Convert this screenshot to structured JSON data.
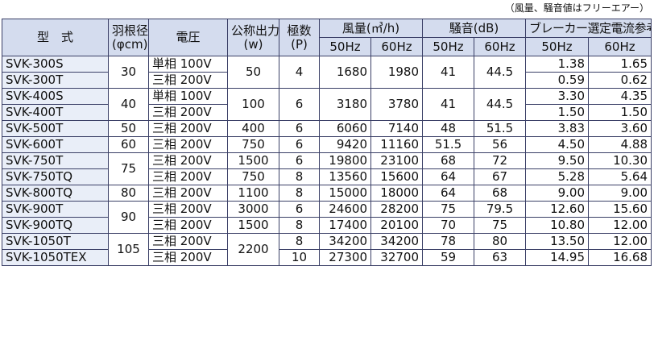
{
  "note": "（風量、騒音値はフリーエアー）",
  "headers": {
    "model": "型　式",
    "blade_dia": "羽根径",
    "blade_dia_unit": "(φcm)",
    "voltage": "電圧",
    "output": "公称出力",
    "output_unit": "(w)",
    "poles": "極数",
    "poles_unit": "(P)",
    "airflow": "風量(㎥/h)",
    "noise": "騒音(dB)",
    "breaker": "ブレーカー選定電流参考値(A)",
    "hz50": "50Hz",
    "hz60": "60Hz"
  },
  "rows": [
    {
      "model": "SVK-300S",
      "dia": "30",
      "volt": "単相 100V",
      "output": "50",
      "poles": "4",
      "af50": "1680",
      "af60": "1980",
      "n50": "41",
      "n60": "44.5",
      "b50": "1.38",
      "b60": "1.65"
    },
    {
      "model": "SVK-300T",
      "volt": "三相 200V",
      "b50": "0.59",
      "b60": "0.62"
    },
    {
      "model": "SVK-400S",
      "dia": "40",
      "volt": "単相 100V",
      "output": "100",
      "poles": "6",
      "af50": "3180",
      "af60": "3780",
      "n50": "41",
      "n60": "44.5",
      "b50": "3.30",
      "b60": "4.35"
    },
    {
      "model": "SVK-400T",
      "volt": "三相 200V",
      "b50": "1.50",
      "b60": "1.50"
    },
    {
      "model": "SVK-500T",
      "dia": "50",
      "volt": "三相 200V",
      "output": "400",
      "poles": "6",
      "af50": "6060",
      "af60": "7140",
      "n50": "48",
      "n60": "51.5",
      "b50": "3.83",
      "b60": "3.60"
    },
    {
      "model": "SVK-600T",
      "dia": "60",
      "volt": "三相 200V",
      "output": "750",
      "poles": "6",
      "af50": "9420",
      "af60": "11160",
      "n50": "51.5",
      "n60": "56",
      "b50": "4.50",
      "b60": "4.88"
    },
    {
      "model": "SVK-750T",
      "dia": "75",
      "volt": "三相 200V",
      "output": "1500",
      "poles": "6",
      "af50": "19800",
      "af60": "23100",
      "n50": "68",
      "n60": "72",
      "b50": "9.50",
      "b60": "10.30"
    },
    {
      "model": "SVK-750TQ",
      "volt": "三相 200V",
      "output": "750",
      "poles": "8",
      "af50": "13560",
      "af60": "15600",
      "n50": "64",
      "n60": "67",
      "b50": "5.28",
      "b60": "5.64"
    },
    {
      "model": "SVK-800TQ",
      "dia": "80",
      "volt": "三相 200V",
      "output": "1100",
      "poles": "8",
      "af50": "15000",
      "af60": "18000",
      "n50": "64",
      "n60": "68",
      "b50": "9.00",
      "b60": "9.00"
    },
    {
      "model": "SVK-900T",
      "dia": "90",
      "volt": "三相 200V",
      "output": "3000",
      "poles": "6",
      "af50": "24600",
      "af60": "28200",
      "n50": "75",
      "n60": "79.5",
      "b50": "12.60",
      "b60": "15.60"
    },
    {
      "model": "SVK-900TQ",
      "volt": "三相 200V",
      "output": "1500",
      "poles": "8",
      "af50": "17400",
      "af60": "20100",
      "n50": "70",
      "n60": "75",
      "b50": "10.80",
      "b60": "12.00"
    },
    {
      "model": "SVK-1050T",
      "dia": "105",
      "volt": "三相 200V",
      "output": "2200",
      "poles": "8",
      "af50": "34200",
      "af60": "34200",
      "n50": "78",
      "n60": "80",
      "b50": "13.50",
      "b60": "12.00"
    },
    {
      "model": "SVK-1050TEX",
      "volt": "三相 200V",
      "poles": "10",
      "af50": "27300",
      "af60": "32700",
      "n50": "59",
      "n60": "63",
      "b50": "14.95",
      "b60": "16.68"
    }
  ]
}
